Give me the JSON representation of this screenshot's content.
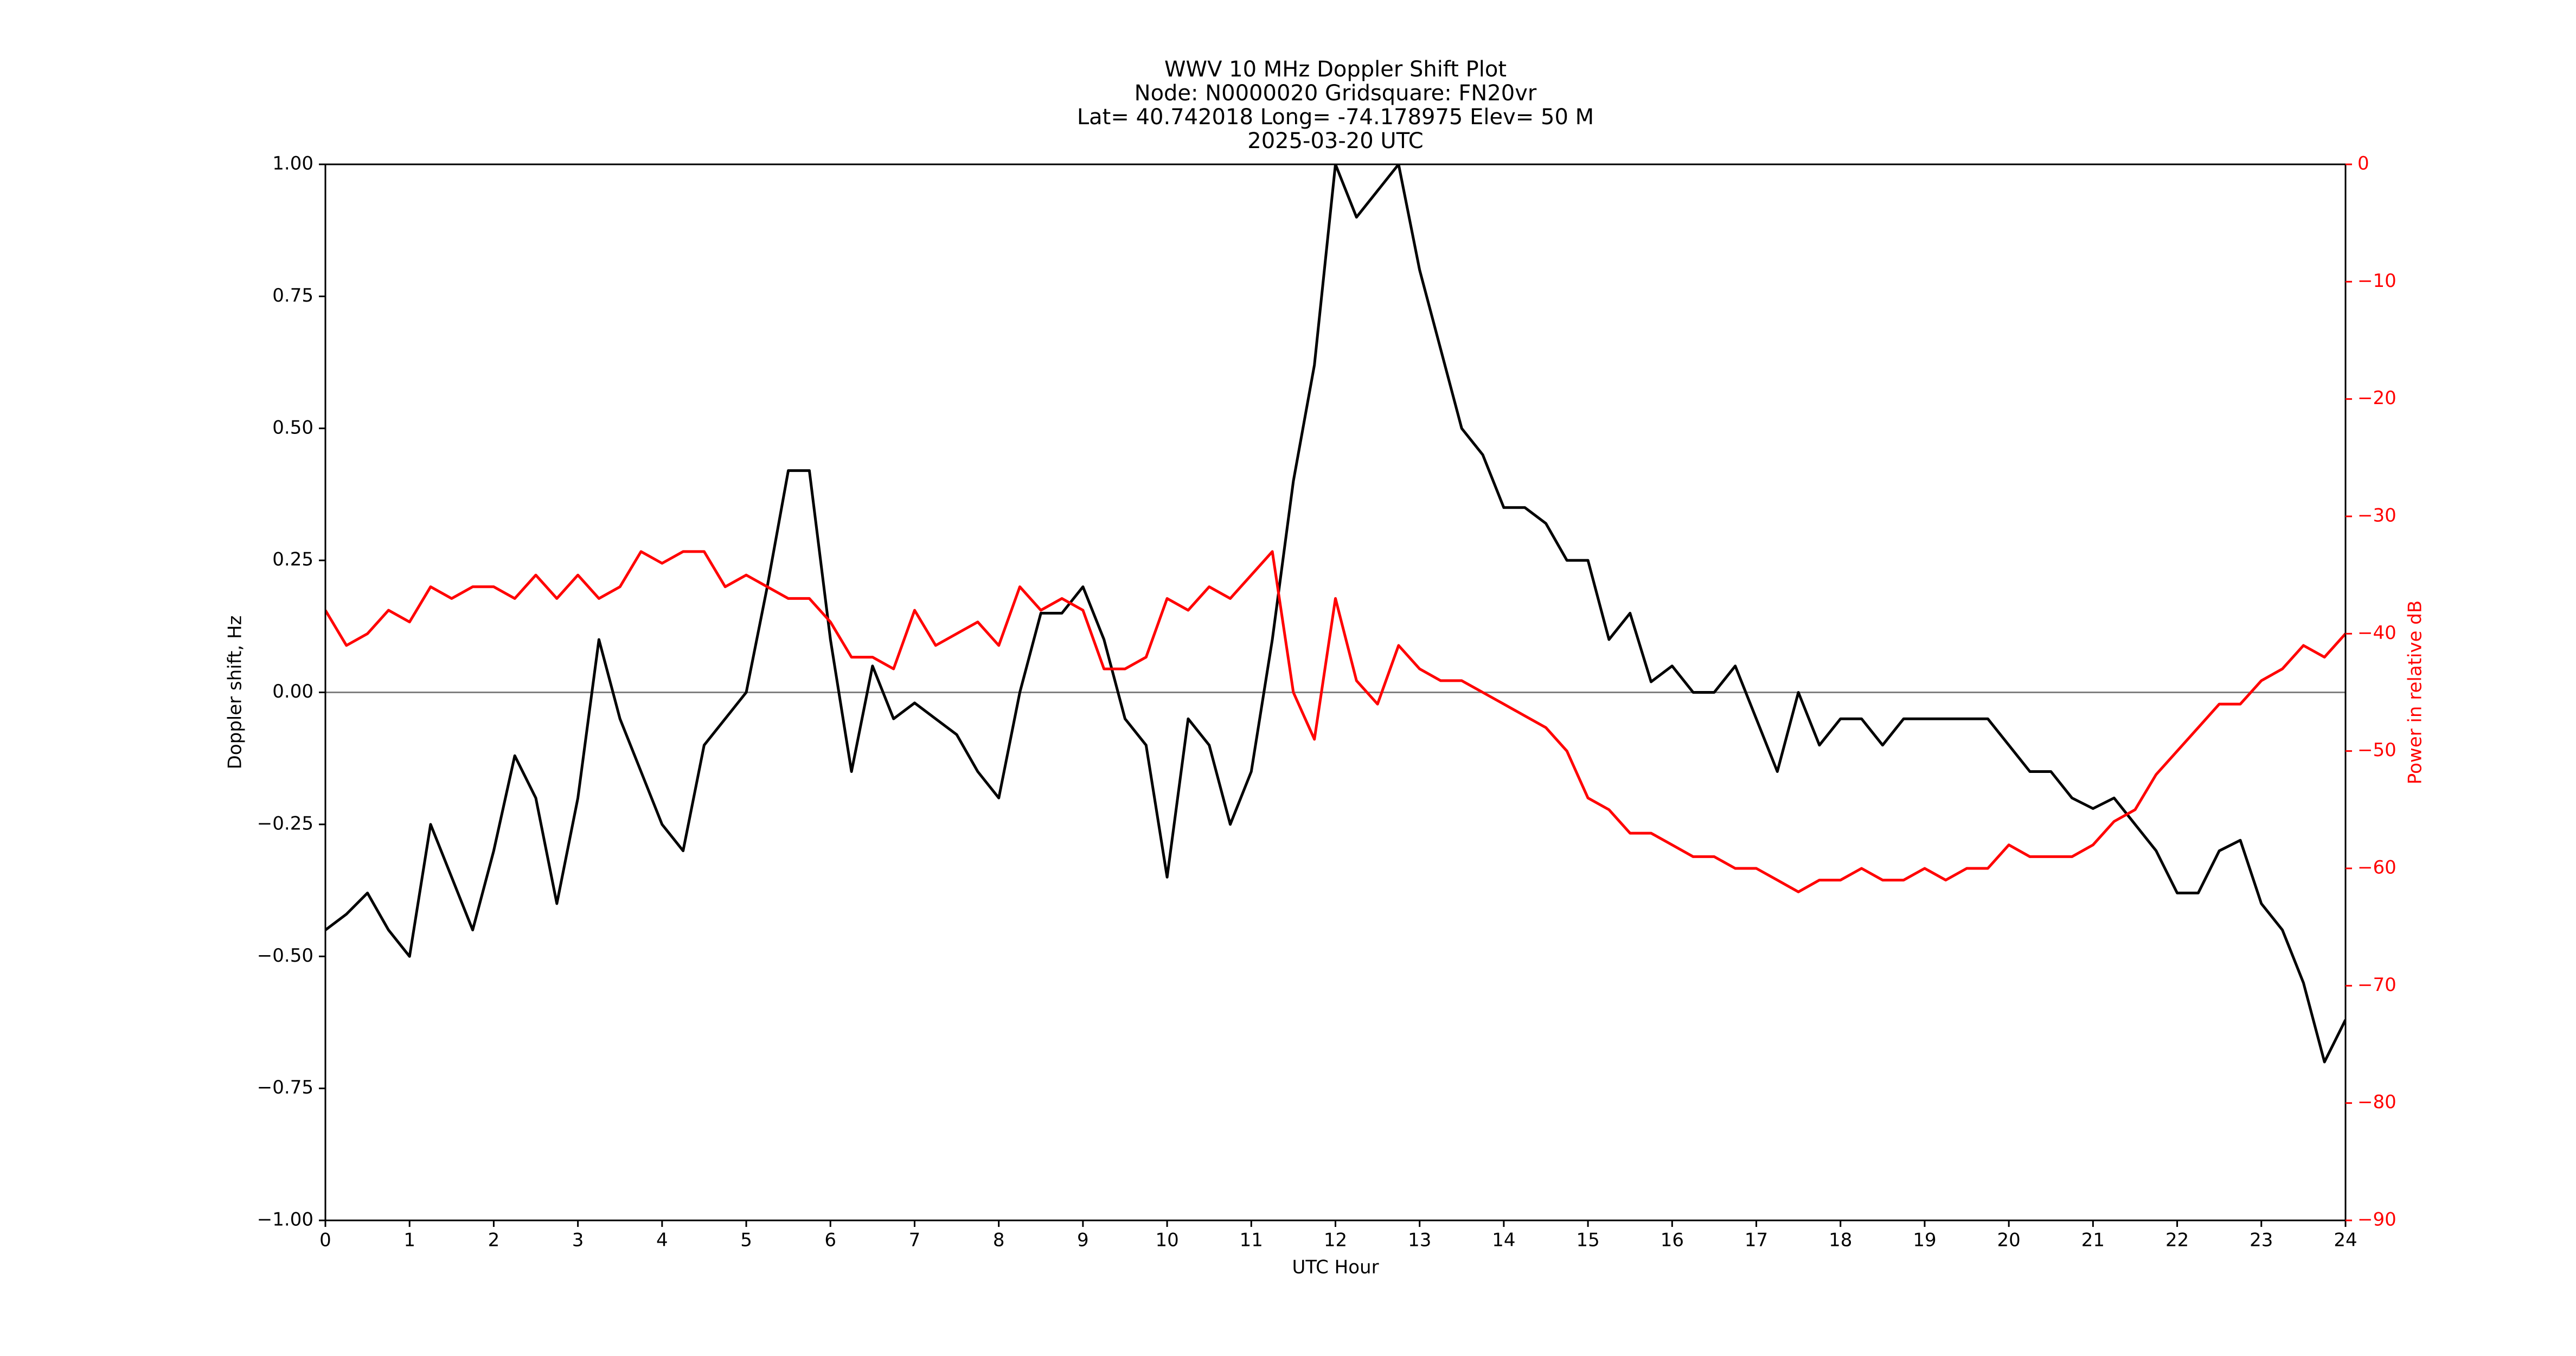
{
  "chart_data": {
    "type": "line",
    "title": [
      "WWV 10 MHz Doppler Shift Plot",
      "Node:  N0000020     Gridsquare:  FN20vr",
      "Lat= 40.742018    Long= -74.178975    Elev= 50 M",
      "2025-03-20  UTC"
    ],
    "x_label": "UTC Hour",
    "y_label": "Doppler shift, Hz",
    "y2_label": "Power in relative dB",
    "x": [
      0,
      0.25,
      0.5,
      0.75,
      1,
      1.25,
      1.5,
      1.75,
      2,
      2.25,
      2.5,
      2.75,
      3,
      3.25,
      3.5,
      3.75,
      4,
      4.25,
      4.5,
      4.75,
      5,
      5.25,
      5.5,
      5.75,
      6,
      6.25,
      6.5,
      6.75,
      7,
      7.25,
      7.5,
      7.75,
      8,
      8.25,
      8.5,
      8.75,
      9,
      9.25,
      9.5,
      9.75,
      10,
      10.25,
      10.5,
      10.75,
      11,
      11.25,
      11.5,
      11.75,
      12,
      12.25,
      12.5,
      12.75,
      13,
      13.25,
      13.5,
      13.75,
      14,
      14.25,
      14.5,
      14.75,
      15,
      15.25,
      15.5,
      15.75,
      16,
      16.25,
      16.5,
      16.75,
      17,
      17.25,
      17.5,
      17.75,
      18,
      18.25,
      18.5,
      18.75,
      19,
      19.25,
      19.5,
      19.75,
      20,
      20.25,
      20.5,
      20.75,
      21,
      21.25,
      21.5,
      21.75,
      22,
      22.25,
      22.5,
      22.75,
      23,
      23.25,
      23.5,
      23.75,
      24
    ],
    "series": [
      {
        "color": "#000000",
        "values": [
          -0.45,
          -0.42,
          -0.38,
          -0.45,
          -0.5,
          -0.25,
          -0.35,
          -0.45,
          -0.3,
          -0.12,
          -0.2,
          -0.4,
          -0.2,
          0.1,
          -0.05,
          -0.15,
          -0.25,
          -0.3,
          -0.1,
          -0.05,
          0,
          0.2,
          0.42,
          0.42,
          0.1,
          -0.15,
          0.05,
          -0.05,
          -0.02,
          -0.05,
          -0.08,
          -0.15,
          -0.2,
          0,
          0.15,
          0.15,
          0.2,
          0.1,
          -0.05,
          -0.1,
          -0.35,
          -0.05,
          -0.1,
          -0.25,
          -0.15,
          0.1,
          0.4,
          0.62,
          1,
          0.9,
          0.95,
          1,
          0.8,
          0.65,
          0.5,
          0.45,
          0.35,
          0.35,
          0.32,
          0.25,
          0.25,
          0.1,
          0.15,
          0.02,
          0.05,
          0,
          0,
          0.05,
          -0.05,
          -0.15,
          0,
          -0.1,
          -0.05,
          -0.05,
          -0.1,
          -0.05,
          -0.05,
          -0.05,
          -0.05,
          -0.05,
          -0.1,
          -0.15,
          -0.15,
          -0.2,
          -0.22,
          -0.2,
          -0.25,
          -0.3,
          -0.38,
          -0.38,
          -0.3,
          -0.28,
          -0.4,
          -0.45,
          -0.55,
          -0.7,
          -0.62
        ]
      },
      {
        "color": "#ff0000",
        "axis": "y2",
        "values": [
          -38,
          -41,
          -40,
          -38,
          -39,
          -36,
          -37,
          -36,
          -36,
          -37,
          -35,
          -37,
          -35,
          -37,
          -36,
          -33,
          -34,
          -33,
          -33,
          -36,
          -35,
          -36,
          -37,
          -37,
          -39,
          -42,
          -42,
          -43,
          -38,
          -41,
          -40,
          -39,
          -41,
          -36,
          -38,
          -37,
          -38,
          -43,
          -43,
          -42,
          -37,
          -38,
          -36,
          -37,
          -35,
          -33,
          -45,
          -49,
          -37,
          -44,
          -46,
          -41,
          -43,
          -44,
          -44,
          -45,
          -46,
          -47,
          -48,
          -50,
          -54,
          -55,
          -57,
          -57,
          -58,
          -59,
          -59,
          -60,
          -60,
          -61,
          -62,
          -61,
          -61,
          -60,
          -61,
          -61,
          -60,
          -61,
          -60,
          -60,
          -58,
          -59,
          -59,
          -59,
          -58,
          -56,
          -55,
          -52,
          -50,
          -48,
          -46,
          -46,
          -44,
          -43,
          -41,
          -42,
          -40
        ]
      }
    ],
    "xlim": [
      0,
      24
    ],
    "xticks": [
      0,
      1,
      2,
      3,
      4,
      5,
      6,
      7,
      8,
      9,
      10,
      11,
      12,
      13,
      14,
      15,
      16,
      17,
      18,
      19,
      20,
      21,
      22,
      23,
      24
    ],
    "ylim": [
      -1,
      1
    ],
    "yticks": [
      {
        "value": -1,
        "label": "−1.00"
      },
      {
        "value": -0.75,
        "label": "−0.75"
      },
      {
        "value": -0.5,
        "label": "−0.50"
      },
      {
        "value": -0.25,
        "label": "−0.25"
      },
      {
        "value": 0,
        "label": "0.00"
      },
      {
        "value": 0.25,
        "label": "0.25"
      },
      {
        "value": 0.5,
        "label": "0.50"
      },
      {
        "value": 0.75,
        "label": "0.75"
      },
      {
        "value": 1,
        "label": "1.00"
      }
    ],
    "y2lim": [
      -90,
      0
    ],
    "y2ticks": [
      {
        "value": -90,
        "label": "−90"
      },
      {
        "value": -80,
        "label": "−80"
      },
      {
        "value": -70,
        "label": "−70"
      },
      {
        "value": -60,
        "label": "−60"
      },
      {
        "value": -50,
        "label": "−50"
      },
      {
        "value": -40,
        "label": "−40"
      },
      {
        "value": -30,
        "label": "−30"
      },
      {
        "value": -20,
        "label": "−20"
      },
      {
        "value": -10,
        "label": "−10"
      },
      0
    ],
    "y2_color": "#ff0000",
    "reference_line": 0
  }
}
